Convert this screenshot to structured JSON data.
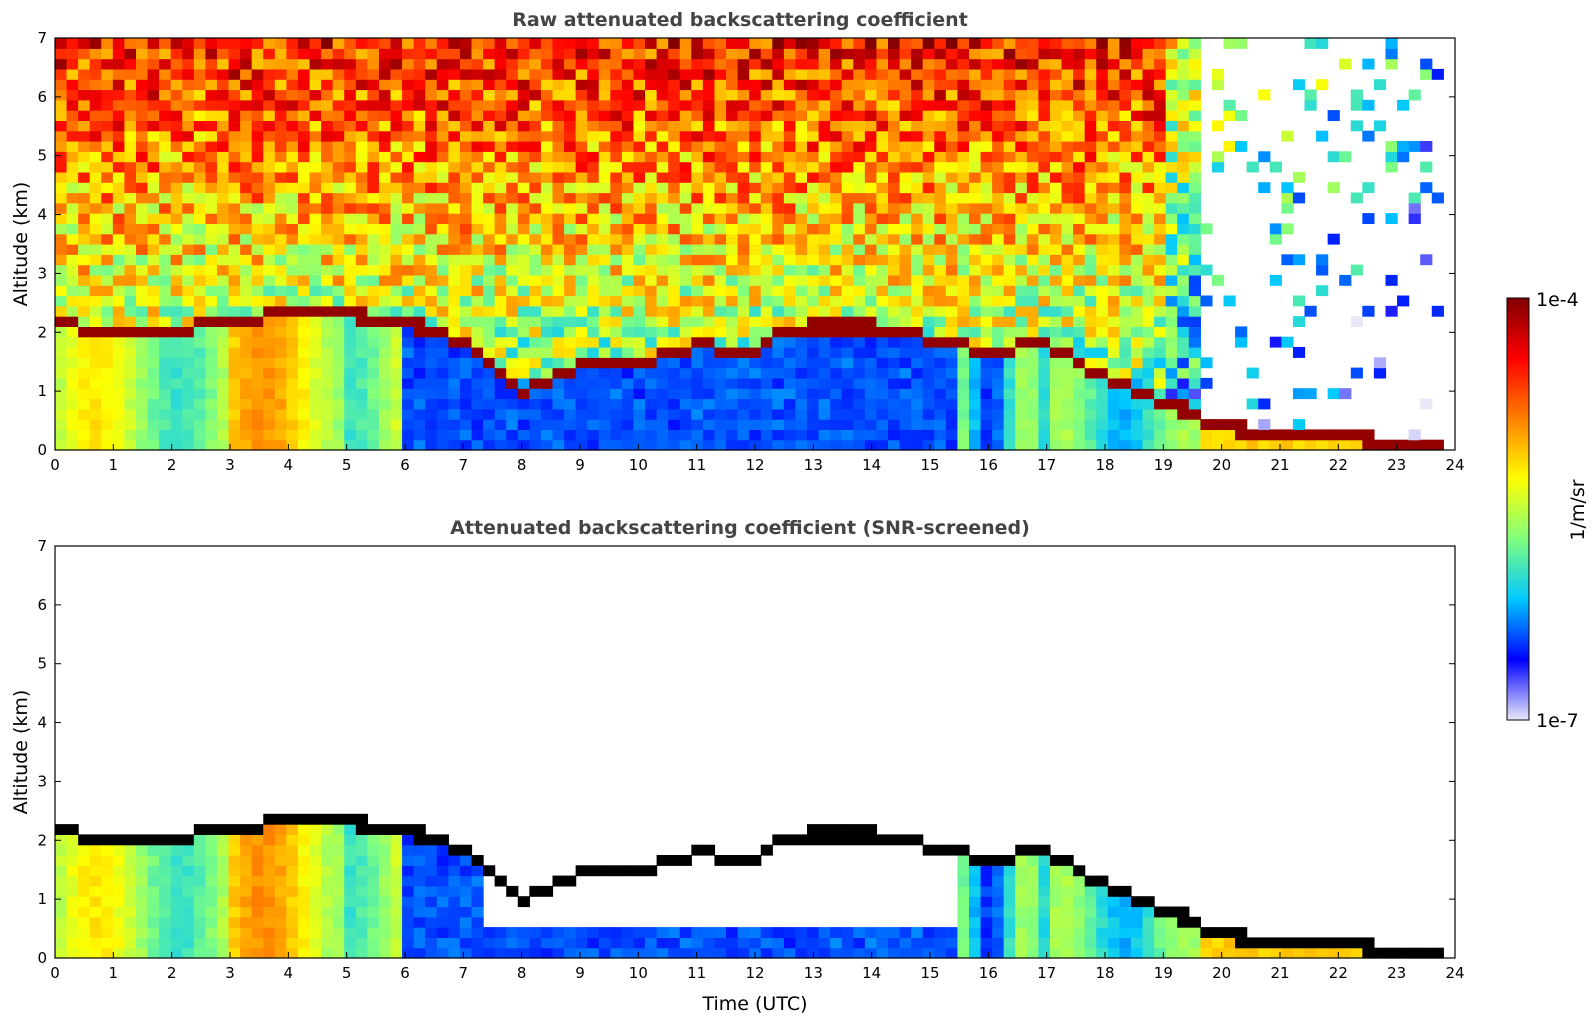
{
  "chart_data": [
    {
      "type": "heatmap",
      "title": "Raw attenuated backscattering coefficient",
      "xlabel": "",
      "ylabel": "Altitude (km)",
      "xlim": [
        0,
        24
      ],
      "ylim": [
        0,
        7
      ],
      "xticks": [
        "0",
        "1",
        "2",
        "3",
        "4",
        "5",
        "6",
        "7",
        "8",
        "9",
        "10",
        "11",
        "12",
        "13",
        "14",
        "15",
        "16",
        "17",
        "18",
        "19",
        "20",
        "21",
        "22",
        "23",
        "24"
      ],
      "yticks": [
        "0",
        "1",
        "2",
        "3",
        "4",
        "5",
        "6",
        "7"
      ],
      "data_end_hour": 23.8,
      "cloud_layer": [
        {
          "t": 0.0,
          "alt": 2.15
        },
        {
          "t": 1.0,
          "alt": 2.0
        },
        {
          "t": 2.0,
          "alt": 2.05
        },
        {
          "t": 3.0,
          "alt": 2.2
        },
        {
          "t": 4.0,
          "alt": 2.35
        },
        {
          "t": 5.0,
          "alt": 2.3
        },
        {
          "t": 6.0,
          "alt": 2.2
        },
        {
          "t": 7.0,
          "alt": 1.8
        },
        {
          "t": 8.0,
          "alt": 1.0
        },
        {
          "t": 9.0,
          "alt": 1.45
        },
        {
          "t": 10.0,
          "alt": 1.5
        },
        {
          "t": 11.0,
          "alt": 1.8
        },
        {
          "t": 12.0,
          "alt": 1.6
        },
        {
          "t": 12.5,
          "alt": 2.05
        },
        {
          "t": 13.0,
          "alt": 2.1
        },
        {
          "t": 14.0,
          "alt": 2.1
        },
        {
          "t": 15.0,
          "alt": 1.9
        },
        {
          "t": 16.0,
          "alt": 1.7
        },
        {
          "t": 17.0,
          "alt": 1.8
        },
        {
          "t": 18.0,
          "alt": 1.2
        },
        {
          "t": 19.0,
          "alt": 0.85
        },
        {
          "t": 20.0,
          "alt": 0.4
        },
        {
          "t": 21.0,
          "alt": 0.25
        },
        {
          "t": 22.0,
          "alt": 0.2
        },
        {
          "t": 23.0,
          "alt": 0.15
        },
        {
          "t": 23.8,
          "alt": 0.12
        }
      ]
    },
    {
      "type": "heatmap",
      "title": "Attenuated backscattering coefficient (SNR-screened)",
      "xlabel": "Time (UTC)",
      "ylabel": "Altitude (km)",
      "xlim": [
        0,
        24
      ],
      "ylim": [
        0,
        7
      ],
      "xticks": [
        "0",
        "1",
        "2",
        "3",
        "4",
        "5",
        "6",
        "7",
        "8",
        "9",
        "10",
        "11",
        "12",
        "13",
        "14",
        "15",
        "16",
        "17",
        "18",
        "19",
        "20",
        "21",
        "22",
        "23",
        "24"
      ],
      "yticks": [
        "0",
        "1",
        "2",
        "3",
        "4",
        "5",
        "6",
        "7"
      ],
      "data_end_hour": 23.8
    }
  ],
  "colorbar": {
    "label": "1/m/sr",
    "max_label": "1e-4",
    "min_label": "1e-7",
    "colors": [
      "#e8e8f8",
      "#0000ff",
      "#00c8ff",
      "#7fff7f",
      "#ffff00",
      "#ff8000",
      "#ff0000",
      "#800000"
    ]
  }
}
